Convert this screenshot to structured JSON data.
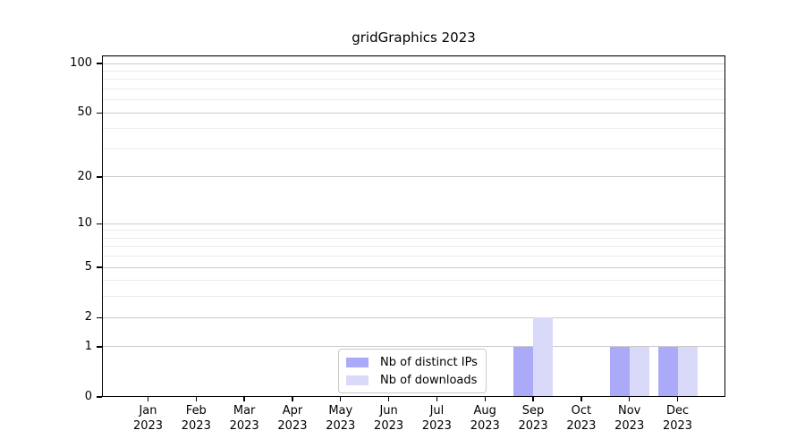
{
  "chart_data": {
    "type": "bar",
    "title": "gridGraphics 2023",
    "x_categories": [
      {
        "month": "Jan",
        "year": "2023"
      },
      {
        "month": "Feb",
        "year": "2023"
      },
      {
        "month": "Mar",
        "year": "2023"
      },
      {
        "month": "Apr",
        "year": "2023"
      },
      {
        "month": "May",
        "year": "2023"
      },
      {
        "month": "Jun",
        "year": "2023"
      },
      {
        "month": "Jul",
        "year": "2023"
      },
      {
        "month": "Aug",
        "year": "2023"
      },
      {
        "month": "Sep",
        "year": "2023"
      },
      {
        "month": "Oct",
        "year": "2023"
      },
      {
        "month": "Nov",
        "year": "2023"
      },
      {
        "month": "Dec",
        "year": "2023"
      }
    ],
    "series": [
      {
        "name": "Nb of distinct IPs",
        "color": "#aaaaf8",
        "values": [
          0,
          0,
          0,
          0,
          0,
          0,
          0,
          0,
          1,
          0,
          1,
          1
        ]
      },
      {
        "name": "Nb of downloads",
        "color": "#d9d9fa",
        "values": [
          0,
          0,
          0,
          0,
          0,
          0,
          0,
          0,
          2,
          0,
          1,
          1
        ]
      }
    ],
    "y_axis": {
      "scale": "log1p",
      "tick_values": [
        0,
        1,
        2,
        5,
        10,
        20,
        50,
        100
      ],
      "minor_gridline_values": [
        3,
        4,
        6,
        7,
        8,
        9,
        30,
        40,
        60,
        70,
        80,
        90,
        110
      ],
      "range": [
        0,
        112
      ]
    },
    "grid": "horizontal",
    "legend_position": "bottom-center",
    "colors": {
      "major_gridline": "#cccccc",
      "minor_gridline": "#ebebeb",
      "axis": "#000000",
      "background": "#ffffff"
    }
  }
}
